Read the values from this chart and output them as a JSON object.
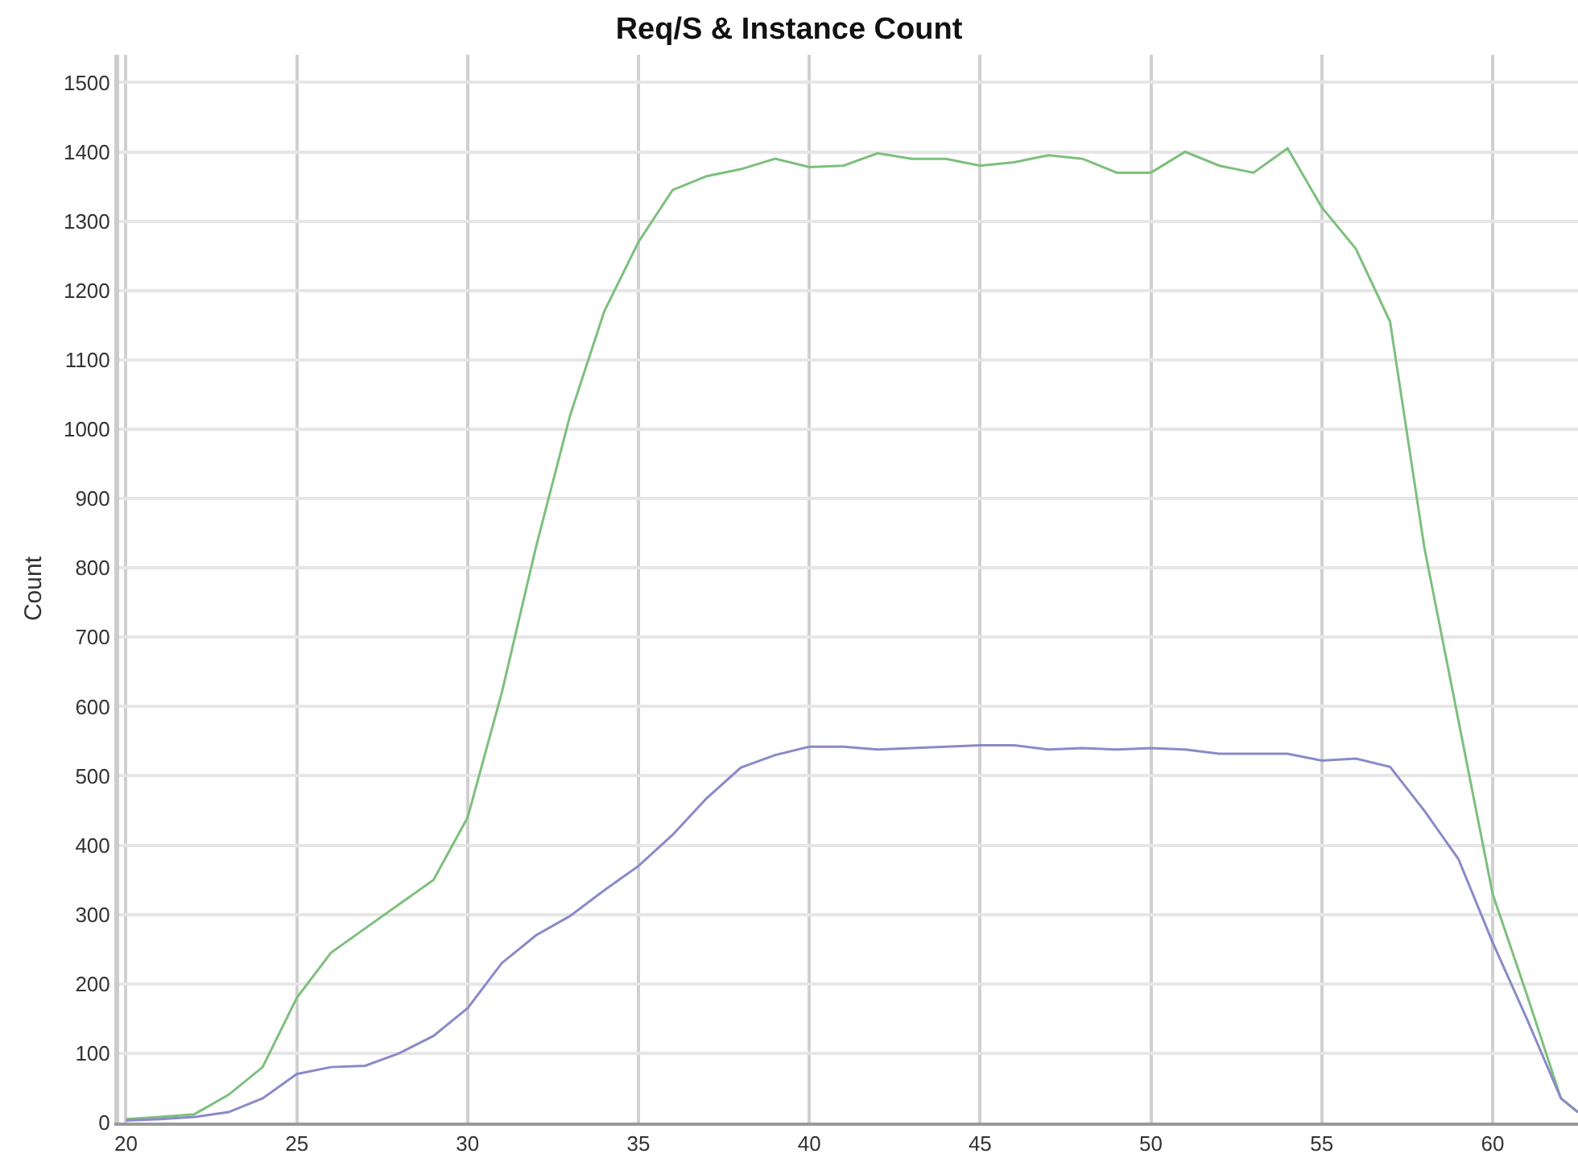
{
  "chart_data": {
    "type": "line",
    "title": "Req/S & Instance Count",
    "ylabel": "Count",
    "x": [
      20,
      21,
      22,
      23,
      24,
      25,
      26,
      27,
      28,
      29,
      30,
      31,
      32,
      33,
      34,
      35,
      36,
      37,
      38,
      39,
      40,
      41,
      42,
      43,
      44,
      45,
      46,
      47,
      48,
      49,
      50,
      51,
      52,
      53,
      54,
      55,
      56,
      57,
      58,
      59,
      60,
      61,
      62,
      62.5
    ],
    "series": [
      {
        "color": "#7dbf7d",
        "values": [
          5,
          8,
          12,
          40,
          80,
          180,
          245,
          280,
          315,
          350,
          440,
          620,
          830,
          1020,
          1170,
          1270,
          1345,
          1365,
          1375,
          1390,
          1378,
          1380,
          1398,
          1390,
          1390,
          1380,
          1385,
          1395,
          1390,
          1370,
          1370,
          1400,
          1380,
          1370,
          1405,
          1320,
          1260,
          1155,
          830,
          580,
          330,
          185,
          35,
          15
        ]
      },
      {
        "color": "#8a8ac8",
        "values": [
          3,
          5,
          8,
          15,
          35,
          70,
          80,
          82,
          100,
          125,
          165,
          230,
          270,
          298,
          335,
          370,
          415,
          468,
          512,
          530,
          542,
          542,
          538,
          540,
          542,
          544,
          544,
          538,
          540,
          538,
          540,
          538,
          532,
          532,
          532,
          522,
          525,
          513,
          450,
          380,
          260,
          150,
          35,
          15
        ]
      }
    ],
    "xlim": [
      19.8,
      62.5
    ],
    "xticks": [
      20,
      25,
      30,
      35,
      40,
      45,
      50,
      55,
      60
    ],
    "ylim": [
      0,
      1540
    ],
    "yticks": [
      0,
      100,
      200,
      300,
      400,
      500,
      600,
      700,
      800,
      900,
      1000,
      1100,
      1200,
      1300,
      1400,
      1500
    ],
    "grid": true,
    "line_style": "solid"
  }
}
